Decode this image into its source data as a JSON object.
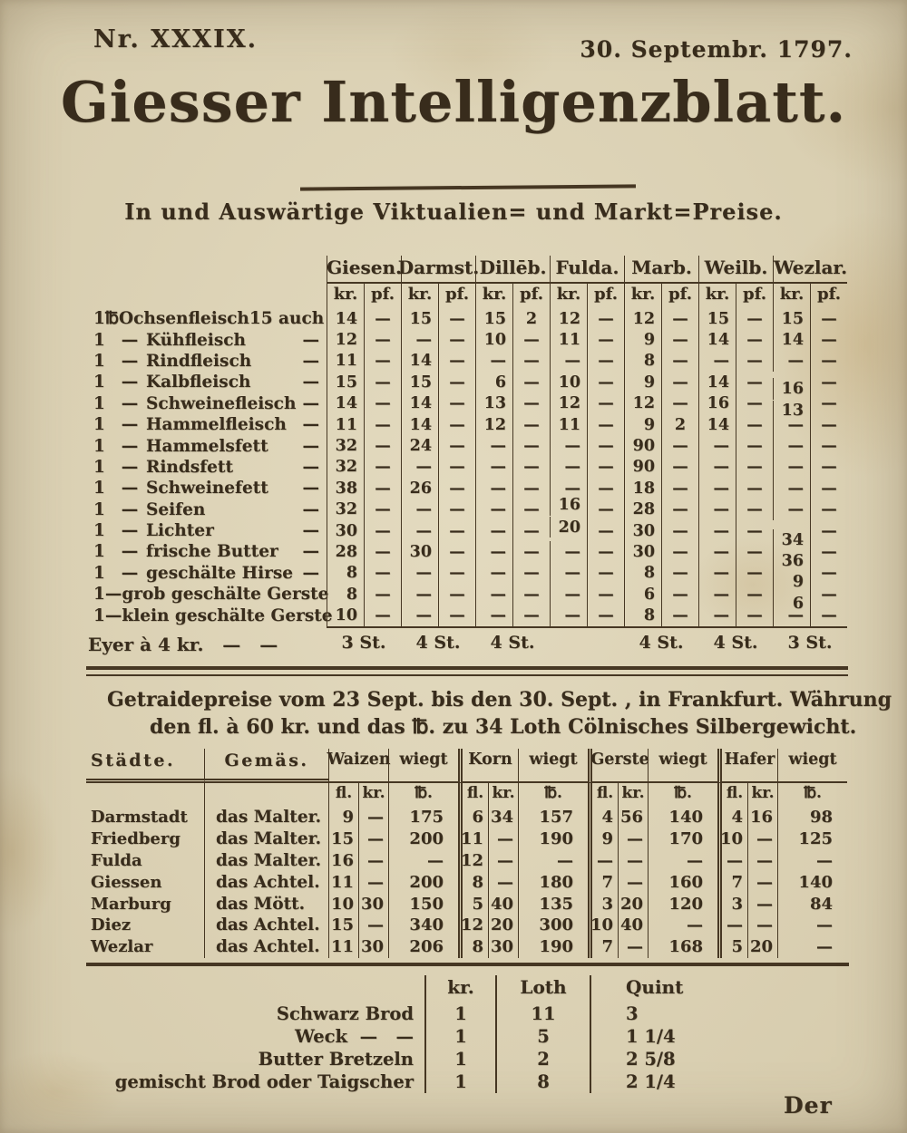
{
  "page": {
    "issue_number": "Nr. XXXIX.",
    "date": "30. Septembr. 1797.",
    "title": "Giesser Intelligenzblatt.",
    "subtitle": "In und Auswärtige Viktualien= und Markt=Preise.",
    "catchword": "Der"
  },
  "colors": {
    "paper": "#dcd2b6",
    "ink": "#382c1c"
  },
  "viktualien_table": {
    "cities": [
      "Giesen.",
      "Darmst.",
      "Dillēb.",
      "Fulda.",
      "Marb.",
      "Weilb.",
      "Wezlar."
    ],
    "unit_row": [
      "kr.",
      "pf."
    ],
    "rows": [
      {
        "qty": "1",
        "unit": "℔",
        "name": "Ochsenfleisch",
        "suffix": "15 auch",
        "values": [
          "14",
          "—",
          "15",
          "—",
          "15",
          "2",
          "12",
          "—",
          "12",
          "—",
          "15",
          "—",
          "15",
          "—"
        ]
      },
      {
        "qty": "1",
        "unit": "—",
        "name": "Kühfleisch",
        "suffix": "—",
        "values": [
          "12",
          "—",
          "—",
          "—",
          "10",
          "—",
          "11",
          "—",
          "9",
          "—",
          "14",
          "—",
          "14",
          "—"
        ]
      },
      {
        "qty": "1",
        "unit": "—",
        "name": "Rindfleisch",
        "suffix": "—",
        "values": [
          "11",
          "—",
          "14",
          "—",
          "—",
          "—",
          "—",
          "—",
          "8",
          "—",
          "—",
          "—",
          "—",
          "—"
        ]
      },
      {
        "qty": "1",
        "unit": "—",
        "name": "Kalbfleisch",
        "suffix": "—",
        "values": [
          "15",
          "—",
          "15",
          "—",
          "6",
          "—",
          "10",
          "—",
          "9",
          "—",
          "14",
          "—",
          "16",
          "—"
        ]
      },
      {
        "qty": "1",
        "unit": "—",
        "name": "Schweinefleisch",
        "suffix": "—",
        "values": [
          "14",
          "—",
          "14",
          "—",
          "13",
          "—",
          "12",
          "—",
          "12",
          "—",
          "16",
          "—",
          "13",
          "—"
        ]
      },
      {
        "qty": "1",
        "unit": "—",
        "name": "Hammelfleisch",
        "suffix": "—",
        "values": [
          "11",
          "—",
          "14",
          "—",
          "12",
          "—",
          "11",
          "—",
          "9",
          "2",
          "14",
          "—",
          "—",
          "—"
        ]
      },
      {
        "qty": "1",
        "unit": "—",
        "name": "Hammelsfett",
        "suffix": "—",
        "values": [
          "32",
          "—",
          "24",
          "—",
          "—",
          "—",
          "—",
          "—",
          "90",
          "—",
          "—",
          "—",
          "—",
          "—"
        ]
      },
      {
        "qty": "1",
        "unit": "—",
        "name": "Rindsfett",
        "suffix": "—",
        "values": [
          "32",
          "—",
          "—",
          "—",
          "—",
          "—",
          "—",
          "—",
          "90",
          "—",
          "—",
          "—",
          "—",
          "—"
        ]
      },
      {
        "qty": "1",
        "unit": "—",
        "name": "Schweinefett",
        "suffix": "—",
        "values": [
          "38",
          "—",
          "26",
          "—",
          "—",
          "—",
          "—",
          "—",
          "18",
          "—",
          "—",
          "—",
          "—",
          "—"
        ]
      },
      {
        "qty": "1",
        "unit": "—",
        "name": "Seifen",
        "suffix": "—",
        "values": [
          "32",
          "—",
          "—",
          "—",
          "—",
          "—",
          "16",
          "—",
          "28",
          "—",
          "—",
          "—",
          "—",
          "—"
        ]
      },
      {
        "qty": "1",
        "unit": "—",
        "name": "Lichter",
        "suffix": "—",
        "values": [
          "30",
          "—",
          "—",
          "—",
          "—",
          "—",
          "20",
          "—",
          "30",
          "—",
          "—",
          "—",
          "34",
          "—"
        ]
      },
      {
        "qty": "1",
        "unit": "—",
        "name": "frische Butter",
        "suffix": "—",
        "values": [
          "28",
          "—",
          "30",
          "—",
          "—",
          "—",
          "—",
          "—",
          "30",
          "—",
          "—",
          "—",
          "36",
          "—"
        ]
      },
      {
        "qty": "1",
        "unit": "—",
        "name": "geschälte Hirse",
        "suffix": "—",
        "values": [
          "8",
          "—",
          "—",
          "—",
          "—",
          "—",
          "—",
          "—",
          "8",
          "—",
          "—",
          "—",
          "9",
          "—"
        ]
      },
      {
        "qty": "1",
        "unit": "—",
        "name": "grob geschälte Gerste",
        "suffix": "",
        "values": [
          "8",
          "—",
          "—",
          "—",
          "—",
          "—",
          "—",
          "—",
          "6",
          "—",
          "—",
          "—",
          "6",
          "—"
        ]
      },
      {
        "qty": "1",
        "unit": "—",
        "name": "klein geschälte Gerste",
        "suffix": "",
        "values": [
          "10",
          "—",
          "—",
          "—",
          "—",
          "—",
          "—",
          "—",
          "8",
          "—",
          "—",
          "—",
          "—",
          "—"
        ]
      }
    ],
    "eggs_row": {
      "label": "Eyer à 4 kr.   —   —",
      "stueck": [
        "3 St.",
        "4 St.",
        "4 St.",
        "",
        "4 St.",
        "4 St.",
        "3 St."
      ]
    }
  },
  "grain_table": {
    "heading_line1": "Getraidepreise vom 23 Sept. bis den 30. Sept. , in Frankfurt. Währung",
    "heading_line2": "den fl. à 60 kr. und das ℔. zu 34 Loth Cölnisches Silbergewicht.",
    "col_city": "Städte.",
    "col_measure": "Gemäs.",
    "grains": [
      "Waizen",
      "Korn",
      "Gerste",
      "Hafer"
    ],
    "wiegt_label": "wiegt",
    "subunits": [
      "fl.",
      "kr.",
      "℔."
    ],
    "rows": [
      {
        "city": "Darmstadt",
        "measure": "das Malter.",
        "values": [
          "9",
          "—",
          "175",
          "6",
          "34",
          "157",
          "4",
          "56",
          "140",
          "4",
          "16",
          "98"
        ]
      },
      {
        "city": "Friedberg",
        "measure": "das Malter.",
        "values": [
          "15",
          "—",
          "200",
          "11",
          "—",
          "190",
          "9",
          "—",
          "170",
          "10",
          "—",
          "125"
        ]
      },
      {
        "city": "Fulda",
        "measure": "das Malter.",
        "values": [
          "16",
          "—",
          "—",
          "12",
          "—",
          "—",
          "—",
          "—",
          "—",
          "—",
          "—",
          "—"
        ]
      },
      {
        "city": "Giessen",
        "measure": "das Achtel.",
        "values": [
          "11",
          "—",
          "200",
          "8",
          "—",
          "180",
          "7",
          "—",
          "160",
          "7",
          "—",
          "140"
        ]
      },
      {
        "city": "Marburg",
        "measure": "das Mött.",
        "values": [
          "10",
          "30",
          "150",
          "5",
          "40",
          "135",
          "3",
          "20",
          "120",
          "3",
          "—",
          "84"
        ]
      },
      {
        "city": "Diez",
        "measure": "das Achtel.",
        "values": [
          "15",
          "—",
          "340",
          "12",
          "20",
          "300",
          "10",
          "40",
          "—",
          "—",
          "—",
          "—"
        ]
      },
      {
        "city": "Wezlar",
        "measure": "das Achtel.",
        "values": [
          "11",
          "30",
          "206",
          "8",
          "30",
          "190",
          "7",
          "—",
          "168",
          "5",
          "20",
          "—"
        ]
      }
    ]
  },
  "bread_table": {
    "headers": [
      "kr.",
      "Loth",
      "Quint"
    ],
    "rows": [
      {
        "label": "Schwarz Brod",
        "values": [
          "1",
          "11",
          "3"
        ]
      },
      {
        "label": "Weck  —   —",
        "values": [
          "1",
          "5",
          "1 1/4"
        ]
      },
      {
        "label": "Butter Bretzeln",
        "values": [
          "1",
          "2",
          "2 5/8"
        ]
      },
      {
        "label": "gemischt Brod oder Taigscher",
        "values": [
          "1",
          "8",
          "2 1/4"
        ]
      }
    ]
  }
}
